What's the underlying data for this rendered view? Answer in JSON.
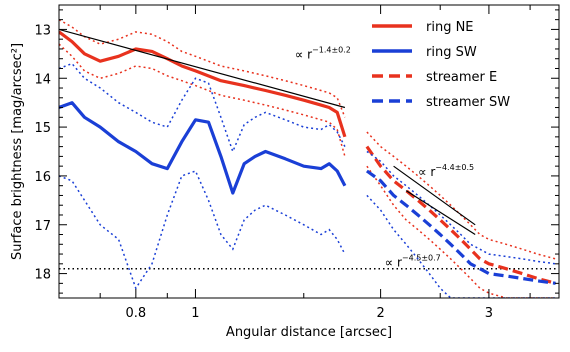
{
  "chart_data": {
    "type": "line",
    "xlabel": "Angular distance [arcsec]",
    "ylabel": "Surface brightness [mag/arcsec²]",
    "x_scale": "log",
    "xlim": [
      0.6,
      3.9
    ],
    "ylim": [
      18.5,
      12.5
    ],
    "y_inverted": true,
    "x_ticks": [
      0.8,
      1,
      2,
      3
    ],
    "x_tick_labels": [
      "0.8",
      "1",
      "2",
      "3"
    ],
    "y_ticks": [
      13,
      14,
      15,
      16,
      17,
      18
    ],
    "y_tick_labels": [
      "13",
      "14",
      "15",
      "16",
      "17",
      "18"
    ],
    "legend_position": "top-right",
    "colors": {
      "red": "#e8321e",
      "blue": "#1a3fd6",
      "black": "#000000"
    },
    "series": [
      {
        "name": "ring NE",
        "color": "#e8321e",
        "style": "solid",
        "x": [
          0.6,
          0.63,
          0.66,
          0.7,
          0.75,
          0.8,
          0.85,
          0.9,
          0.95,
          1.0,
          1.1,
          1.2,
          1.3,
          1.4,
          1.5,
          1.6,
          1.65,
          1.7,
          1.75
        ],
        "y": [
          13.05,
          13.25,
          13.5,
          13.65,
          13.55,
          13.4,
          13.45,
          13.6,
          13.75,
          13.85,
          14.05,
          14.15,
          14.25,
          14.35,
          14.45,
          14.55,
          14.6,
          14.7,
          15.2
        ],
        "upper_y": [
          12.8,
          12.95,
          13.15,
          13.3,
          13.2,
          13.05,
          13.1,
          13.25,
          13.45,
          13.55,
          13.75,
          13.85,
          13.95,
          14.05,
          14.15,
          14.25,
          14.3,
          14.4,
          14.8
        ],
        "lower_y": [
          13.3,
          13.55,
          13.85,
          14.0,
          13.9,
          13.75,
          13.8,
          13.95,
          14.05,
          14.15,
          14.35,
          14.45,
          14.55,
          14.65,
          14.75,
          14.85,
          14.9,
          15.05,
          15.6
        ]
      },
      {
        "name": "ring SW",
        "color": "#1a3fd6",
        "style": "solid",
        "x": [
          0.6,
          0.63,
          0.66,
          0.7,
          0.75,
          0.8,
          0.85,
          0.9,
          0.95,
          1.0,
          1.05,
          1.1,
          1.15,
          1.2,
          1.25,
          1.3,
          1.4,
          1.5,
          1.6,
          1.65,
          1.7,
          1.75
        ],
        "y": [
          14.6,
          14.5,
          14.8,
          15.0,
          15.3,
          15.5,
          15.75,
          15.85,
          15.3,
          14.85,
          14.9,
          15.6,
          16.35,
          15.75,
          15.6,
          15.5,
          15.65,
          15.8,
          15.85,
          15.75,
          15.9,
          16.2
        ],
        "upper_y": [
          13.8,
          13.7,
          14.0,
          14.2,
          14.5,
          14.7,
          14.9,
          15.0,
          14.45,
          14.0,
          14.1,
          14.8,
          15.5,
          14.95,
          14.8,
          14.7,
          14.85,
          15.0,
          15.05,
          14.95,
          15.1,
          15.4
        ],
        "lower_y": [
          16.0,
          16.1,
          16.5,
          17.0,
          17.3,
          18.3,
          17.8,
          16.8,
          16.0,
          15.9,
          16.5,
          17.2,
          17.5,
          16.9,
          16.7,
          16.6,
          16.8,
          17.0,
          17.2,
          17.1,
          17.3,
          17.6
        ]
      },
      {
        "name": "streamer E",
        "color": "#e8321e",
        "style": "dashed",
        "x": [
          1.9,
          2.0,
          2.1,
          2.2,
          2.3,
          2.4,
          2.5,
          2.6,
          2.7,
          2.8,
          2.9,
          3.0,
          3.2,
          3.4,
          3.6,
          3.85
        ],
        "y": [
          15.4,
          15.8,
          16.1,
          16.3,
          16.5,
          16.7,
          16.9,
          17.1,
          17.3,
          17.5,
          17.7,
          17.8,
          17.9,
          18.0,
          18.1,
          18.2
        ],
        "upper_y": [
          15.1,
          15.4,
          15.6,
          15.8,
          16.0,
          16.2,
          16.4,
          16.6,
          16.8,
          17.0,
          17.2,
          17.3,
          17.4,
          17.5,
          17.6,
          17.7
        ],
        "lower_y": [
          15.8,
          16.2,
          16.6,
          16.9,
          17.1,
          17.3,
          17.5,
          17.7,
          17.9,
          18.1,
          18.3,
          18.4,
          18.5,
          18.5,
          18.5,
          18.5
        ]
      },
      {
        "name": "streamer SW",
        "color": "#1a3fd6",
        "style": "dashed",
        "x": [
          1.9,
          2.0,
          2.1,
          2.2,
          2.3,
          2.4,
          2.5,
          2.6,
          2.7,
          2.8,
          2.9,
          3.0,
          3.2,
          3.4,
          3.6,
          3.85
        ],
        "y": [
          15.9,
          16.1,
          16.4,
          16.6,
          16.8,
          17.0,
          17.2,
          17.4,
          17.6,
          17.8,
          17.9,
          18.0,
          18.05,
          18.1,
          18.15,
          18.2
        ],
        "upper_y": [
          15.5,
          15.7,
          16.0,
          16.2,
          16.4,
          16.6,
          16.8,
          17.0,
          17.2,
          17.4,
          17.5,
          17.6,
          17.65,
          17.7,
          17.75,
          17.8
        ],
        "lower_y": [
          16.4,
          16.7,
          17.1,
          17.4,
          17.7,
          18.0,
          18.3,
          18.5,
          18.5,
          18.5,
          18.5,
          18.5,
          18.5,
          18.5,
          18.5,
          18.5
        ]
      }
    ],
    "fit_lines": [
      {
        "x": [
          0.6,
          1.75
        ],
        "y": [
          13.0,
          14.6
        ]
      },
      {
        "x": [
          2.1,
          2.85
        ],
        "y": [
          15.8,
          17.0
        ]
      },
      {
        "x": [
          2.2,
          2.85
        ],
        "y": [
          16.3,
          17.2
        ]
      }
    ],
    "hline": {
      "y": 17.9,
      "style": "dotted"
    },
    "annotations": [
      {
        "base": "∝ r",
        "exp": "−1.4±0.2",
        "x": 1.45,
        "y": 13.6
      },
      {
        "base": "∝ r",
        "exp": "−4.4±0.5",
        "x": 2.3,
        "y": 16.0
      },
      {
        "base": "∝ r",
        "exp": "−4.5±0.7",
        "x": 2.03,
        "y": 17.85
      }
    ]
  }
}
